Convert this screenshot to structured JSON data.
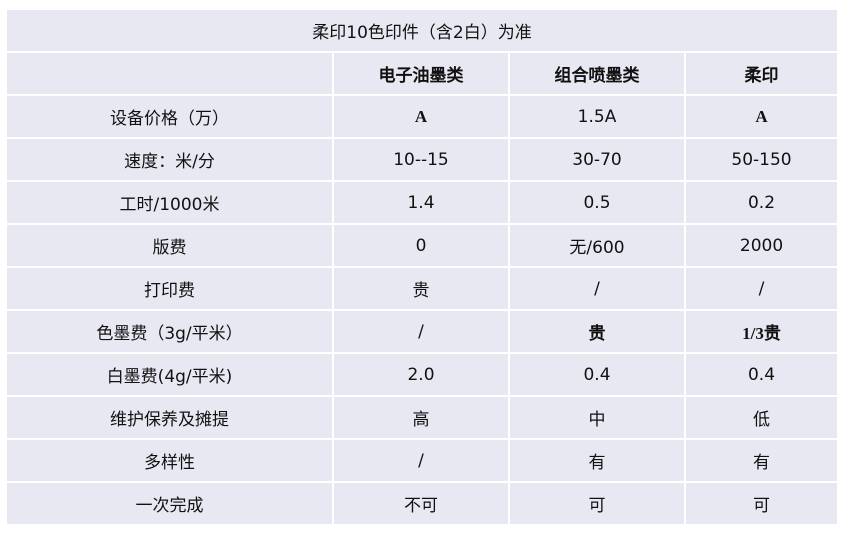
{
  "title": "柔印10色印件（含2白）为准",
  "columns": [
    "",
    "电子油墨类",
    "组合喷墨类",
    "柔印"
  ],
  "rows": [
    {
      "label": "设备价格（万）",
      "values": [
        "A",
        "1.5A",
        "A"
      ]
    },
    {
      "label": "速度：米/分",
      "values": [
        "10--15",
        "30-70",
        "50-150"
      ]
    },
    {
      "label": "工时/1000米",
      "values": [
        "1.4",
        "0.5",
        "0.2"
      ]
    },
    {
      "label": "版费",
      "values": [
        "0",
        "无/600",
        "2000"
      ]
    },
    {
      "label": "打印费",
      "values": [
        "贵",
        "/",
        "/"
      ]
    },
    {
      "label": "色墨费（3g/平米）",
      "values": [
        "/",
        "贵",
        "1/3贵"
      ]
    },
    {
      "label": "白墨费(4g/平米)",
      "values": [
        "2.0",
        "0.4",
        "0.4"
      ]
    },
    {
      "label": "维护保养及摊提",
      "values": [
        "高",
        "中",
        "低"
      ]
    },
    {
      "label": "多样性",
      "values": [
        "/",
        "有",
        "有"
      ]
    },
    {
      "label": "一次完成",
      "values": [
        "不可",
        "可",
        "可"
      ]
    }
  ]
}
